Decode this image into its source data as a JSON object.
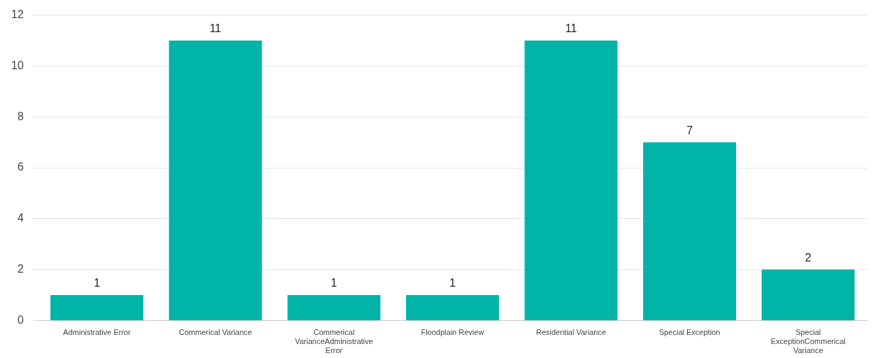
{
  "chart_data": {
    "type": "bar",
    "categories": [
      "Administrative Error",
      "Commerical Variance",
      "Commerical VarianceAdministrative Error",
      "Floodplain Review",
      "Residential Variance",
      "Special Exception",
      "Special ExceptionCommerical Variance"
    ],
    "values": [
      1,
      11,
      1,
      1,
      11,
      7,
      2
    ],
    "color": "#00b5a8",
    "ylim": [
      0,
      12
    ],
    "yticks": [
      0,
      2,
      4,
      6,
      8,
      10,
      12
    ],
    "grid": "y",
    "legend": false,
    "data_labels": true
  }
}
